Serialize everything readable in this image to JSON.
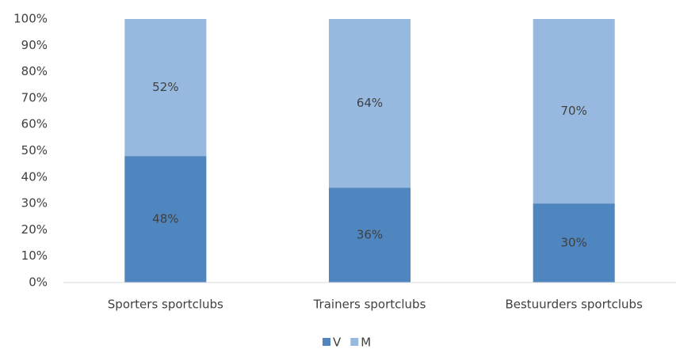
{
  "chart_data": {
    "type": "stacked_bar",
    "categories": [
      "Sporters sportclubs",
      "Trainers sportclubs",
      "Bestuurders sportclubs"
    ],
    "series": [
      {
        "name": "V",
        "color": "#4f86bf",
        "values": [
          48,
          36,
          30
        ],
        "value_labels": [
          "48%",
          "36%",
          "30%"
        ]
      },
      {
        "name": "M",
        "color": "#97b9e0",
        "values": [
          52,
          64,
          70
        ],
        "value_labels": [
          "52%",
          "64%",
          "70%"
        ]
      }
    ],
    "ylim": [
      0,
      100
    ],
    "yticks": [
      {
        "value": 0,
        "label": "0%"
      },
      {
        "value": 10,
        "label": "10%"
      },
      {
        "value": 20,
        "label": "20%"
      },
      {
        "value": 30,
        "label": "30%"
      },
      {
        "value": 40,
        "label": "40%"
      },
      {
        "value": 50,
        "label": "50%"
      },
      {
        "value": 60,
        "label": "60%"
      },
      {
        "value": 70,
        "label": "70%"
      },
      {
        "value": 80,
        "label": "80%"
      },
      {
        "value": 90,
        "label": "90%"
      },
      {
        "value": 100,
        "label": "100%"
      }
    ],
    "grid": false,
    "legend": "bottom"
  }
}
